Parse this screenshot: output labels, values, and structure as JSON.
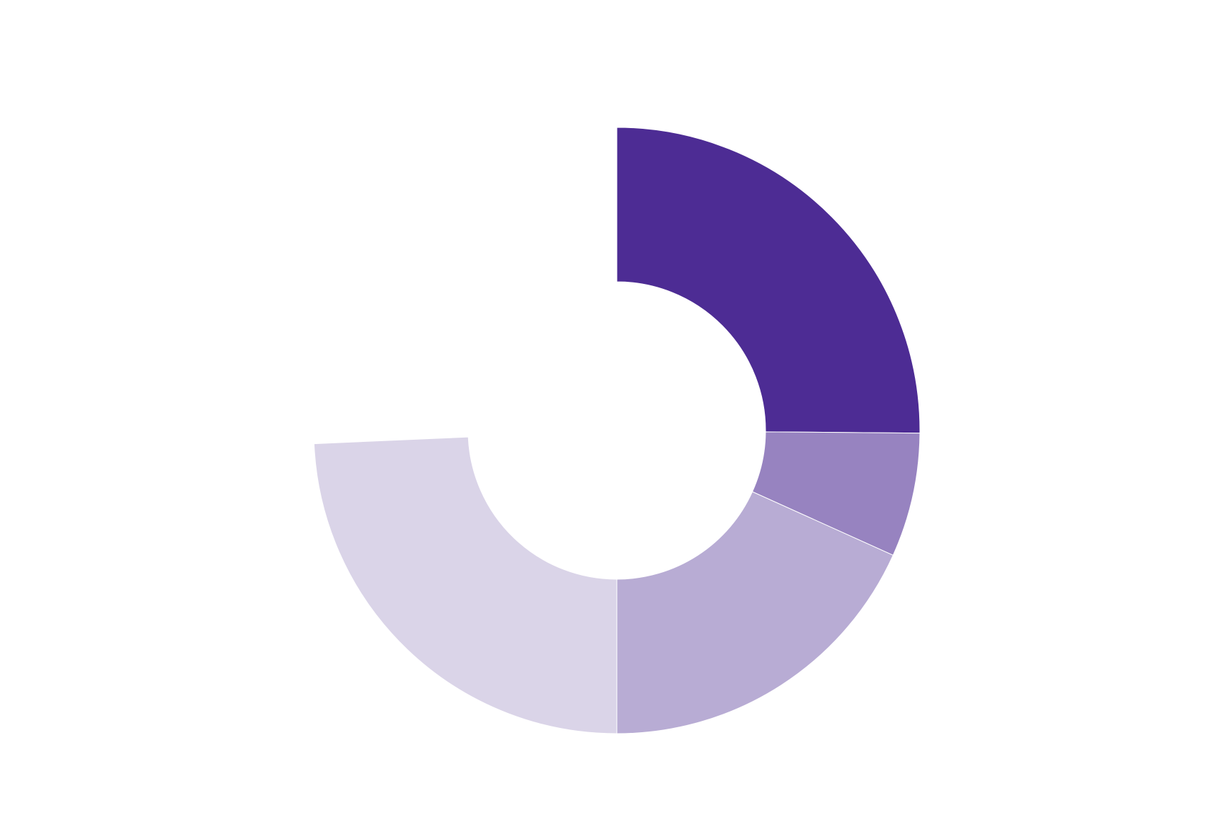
{
  "chart_data": {
    "type": "donut",
    "values": [
      90.5,
      23.8,
      65.7,
      87.5
    ],
    "colors": [
      "#4d2c94",
      "#9783c0",
      "#b8acd4",
      "#dad4e8"
    ]
  }
}
